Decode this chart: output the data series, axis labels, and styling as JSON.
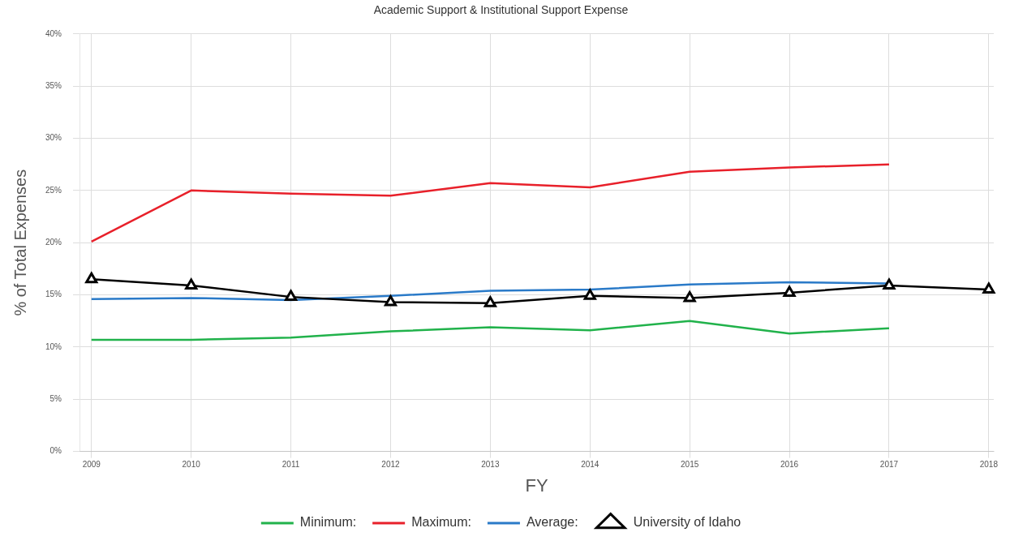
{
  "chart_data": {
    "type": "line",
    "title": "Academic Support & Institutional Support Expense",
    "xlabel": "FY",
    "ylabel": "% of Total Expenses",
    "categories": [
      "2009",
      "2010",
      "2011",
      "2012",
      "2013",
      "2014",
      "2015",
      "2016",
      "2017",
      "2018"
    ],
    "ylim": [
      0,
      40
    ],
    "yticks": [
      {
        "value": 0,
        "label": "0%"
      },
      {
        "value": 5,
        "label": "5%"
      },
      {
        "value": 10,
        "label": "10%"
      },
      {
        "value": 15,
        "label": "15%"
      },
      {
        "value": 20,
        "label": "20%"
      },
      {
        "value": 25,
        "label": "25%"
      },
      {
        "value": 30,
        "label": "30%"
      },
      {
        "value": 35,
        "label": "35%"
      },
      {
        "value": 40,
        "label": "40%"
      }
    ],
    "grid": true,
    "legend": "bottom",
    "line_style": "solid",
    "series": [
      {
        "name": "Minimum:",
        "color": "#21b24b",
        "marker": "none",
        "values": [
          10.7,
          10.7,
          10.9,
          11.5,
          11.9,
          11.6,
          12.5,
          11.3,
          11.8,
          null
        ]
      },
      {
        "name": "Maximum:",
        "color": "#e8202a",
        "marker": "none",
        "values": [
          20.1,
          25.0,
          24.7,
          24.5,
          25.7,
          25.3,
          26.8,
          27.2,
          27.5,
          null
        ]
      },
      {
        "name": "Average:",
        "color": "#2a7ac8",
        "marker": "none",
        "values": [
          14.6,
          14.7,
          14.5,
          14.9,
          15.4,
          15.5,
          16.0,
          16.2,
          16.1,
          null
        ]
      },
      {
        "name": "University of Idaho",
        "color": "#000000",
        "marker": "triangle",
        "values": [
          16.5,
          15.9,
          14.8,
          14.3,
          14.2,
          14.9,
          14.7,
          15.2,
          15.9,
          15.5
        ]
      }
    ]
  }
}
